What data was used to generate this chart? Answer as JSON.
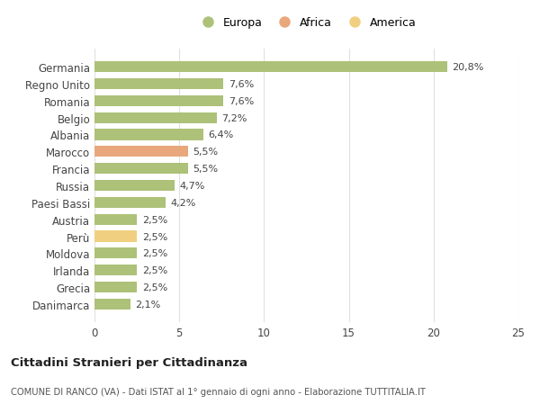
{
  "countries": [
    "Germania",
    "Regno Unito",
    "Romania",
    "Belgio",
    "Albania",
    "Marocco",
    "Francia",
    "Russia",
    "Paesi Bassi",
    "Austria",
    "Perù",
    "Moldova",
    "Irlanda",
    "Grecia",
    "Danimarca"
  ],
  "values": [
    20.8,
    7.6,
    7.6,
    7.2,
    6.4,
    5.5,
    5.5,
    4.7,
    4.2,
    2.5,
    2.5,
    2.5,
    2.5,
    2.5,
    2.1
  ],
  "labels": [
    "20,8%",
    "7,6%",
    "7,6%",
    "7,2%",
    "6,4%",
    "5,5%",
    "5,5%",
    "4,7%",
    "4,2%",
    "2,5%",
    "2,5%",
    "2,5%",
    "2,5%",
    "2,5%",
    "2,1%"
  ],
  "colors": [
    "#adc178",
    "#adc178",
    "#adc178",
    "#adc178",
    "#adc178",
    "#e8a87c",
    "#adc178",
    "#adc178",
    "#adc178",
    "#adc178",
    "#f0d080",
    "#adc178",
    "#adc178",
    "#adc178",
    "#adc178"
  ],
  "legend": [
    {
      "label": "Europa",
      "color": "#adc178"
    },
    {
      "label": "Africa",
      "color": "#e8a87c"
    },
    {
      "label": "America",
      "color": "#f0d080"
    }
  ],
  "xlim": [
    0,
    25
  ],
  "xticks": [
    0,
    5,
    10,
    15,
    20,
    25
  ],
  "title": "Cittadini Stranieri per Cittadinanza",
  "subtitle": "COMUNE DI RANCO (VA) - Dati ISTAT al 1° gennaio di ogni anno - Elaborazione TUTTITALIA.IT",
  "bg_color": "#ffffff",
  "grid_color": "#e0e0e0",
  "bar_height": 0.65
}
